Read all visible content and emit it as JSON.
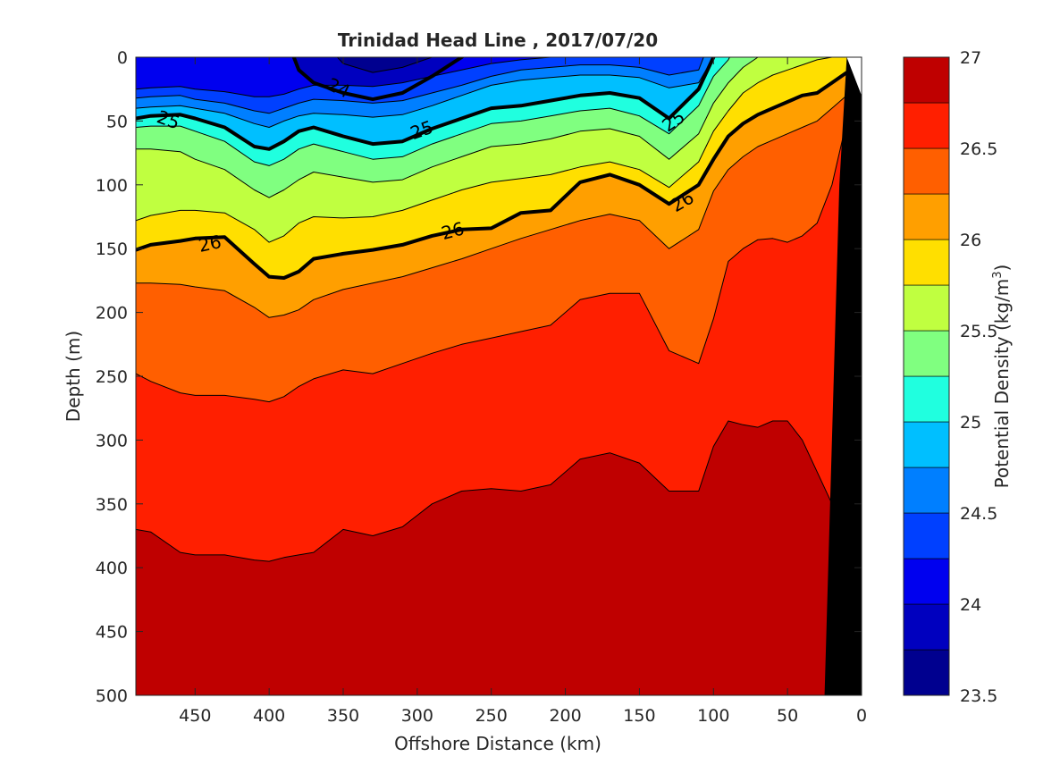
{
  "chart_data": {
    "type": "heatmap",
    "subtype": "filled-contour",
    "title": "Trinidad Head Line , 2017/07/20",
    "xlabel": "Offshore Distance (km)",
    "ylabel": "Depth (m)",
    "colorbar_label": "Potential Density (kg/m",
    "colorbar_label_sup": "3",
    "colorbar_label_end": ")",
    "x_reversed": true,
    "y_reversed": true,
    "xlim": [
      490,
      0
    ],
    "ylim": [
      0,
      500
    ],
    "x_ticks": [
      450,
      400,
      350,
      300,
      250,
      200,
      150,
      100,
      50,
      0
    ],
    "y_ticks": [
      0,
      50,
      100,
      150,
      200,
      250,
      300,
      350,
      400,
      450,
      500
    ],
    "colorbar_range": [
      23.5,
      27
    ],
    "colorbar_ticks": [
      23.5,
      24,
      24.5,
      25,
      25.5,
      26,
      26.5,
      27
    ],
    "contour_interval": 0.25,
    "contour_levels": [
      23.75,
      24,
      24.25,
      24.5,
      24.75,
      25,
      25.25,
      25.5,
      25.75,
      26,
      26.25,
      26.5,
      26.75
    ],
    "bold_contours": [
      24,
      25,
      26
    ],
    "colors": [
      "#00008f",
      "#0000bf",
      "#0000ef",
      "#0040ff",
      "#007fff",
      "#00bfff",
      "#20ffdf",
      "#80ff80",
      "#c0ff40",
      "#ffdf00",
      "#ff9f00",
      "#ff5f00",
      "#ff1f00",
      "#bf0000"
    ],
    "background_top": "#00008f",
    "contour_labels": [
      {
        "text": "24",
        "x": 353,
        "y": 24,
        "angle": 25
      },
      {
        "text": "25",
        "x": 468,
        "y": 49,
        "angle": 20
      },
      {
        "text": "25",
        "x": 297,
        "y": 57,
        "angle": -20
      },
      {
        "text": "25",
        "x": 127,
        "y": 50,
        "angle": -35
      },
      {
        "text": "26",
        "x": 440,
        "y": 146,
        "angle": -12
      },
      {
        "text": "26",
        "x": 276,
        "y": 136,
        "angle": -15
      },
      {
        "text": "26",
        "x": 121,
        "y": 113,
        "angle": -30
      }
    ],
    "isopycnal_depths": {
      "x": [
        490,
        480,
        460,
        450,
        430,
        410,
        400,
        390,
        380,
        370,
        350,
        330,
        310,
        290,
        270,
        250,
        230,
        210,
        190,
        170,
        150,
        130,
        110,
        100,
        90,
        80,
        70,
        60,
        50,
        40,
        30,
        20,
        10
      ],
      "levels": [
        {
          "sigma": 23.75,
          "depth": [
            -20,
            -20,
            -20,
            -20,
            -20,
            -20,
            -20,
            -20,
            -20,
            -20,
            5,
            12,
            8,
            0,
            -20,
            -20,
            -20,
            -20,
            -20,
            -20,
            -20,
            -20,
            -20,
            -20,
            -20,
            -20,
            -20,
            -20,
            -20,
            -20,
            -20,
            -20,
            -20
          ]
        },
        {
          "sigma": 24,
          "depth": [
            -20,
            -20,
            -20,
            -20,
            -20,
            -20,
            -20,
            -20,
            10,
            20,
            28,
            33,
            28,
            15,
            0,
            -20,
            -20,
            -20,
            -20,
            -20,
            -20,
            -20,
            -20,
            -20,
            -20,
            -20,
            -20,
            -20,
            -20,
            -20,
            -20,
            -20,
            -20
          ]
        },
        {
          "sigma": 24.25,
          "depth": [
            25,
            24,
            23,
            25,
            27,
            31,
            31,
            29,
            25,
            22,
            22,
            23,
            20,
            15,
            10,
            5,
            2,
            0,
            0,
            0,
            0,
            0,
            0,
            -20,
            -20,
            -20,
            -20,
            -20,
            -20,
            -20,
            -20,
            -20,
            -20
          ]
        },
        {
          "sigma": 24.5,
          "depth": [
            32,
            31,
            30,
            33,
            36,
            42,
            44,
            40,
            36,
            33,
            34,
            36,
            34,
            28,
            22,
            15,
            10,
            8,
            6,
            6,
            8,
            14,
            10,
            -20,
            -20,
            -20,
            -20,
            -20,
            -20,
            -20,
            -20,
            -20,
            -20
          ]
        },
        {
          "sigma": 24.75,
          "depth": [
            40,
            39,
            38,
            40,
            44,
            52,
            55,
            50,
            46,
            44,
            45,
            47,
            45,
            38,
            30,
            22,
            18,
            16,
            14,
            14,
            16,
            24,
            20,
            0,
            -20,
            -20,
            -20,
            -20,
            -20,
            -20,
            -20,
            -20,
            -20
          ]
        },
        {
          "sigma": 25,
          "depth": [
            48,
            46,
            45,
            48,
            55,
            70,
            72,
            66,
            58,
            55,
            62,
            68,
            66,
            56,
            48,
            40,
            38,
            34,
            30,
            28,
            32,
            48,
            25,
            0,
            -20,
            -20,
            -20,
            -20,
            -20,
            -20,
            -20,
            -20,
            -20
          ]
        },
        {
          "sigma": 25.25,
          "depth": [
            55,
            54,
            54,
            58,
            66,
            82,
            85,
            80,
            72,
            68,
            74,
            80,
            78,
            68,
            60,
            52,
            50,
            46,
            42,
            40,
            46,
            60,
            38,
            15,
            2,
            -20,
            -20,
            -20,
            -20,
            -20,
            -20,
            -20,
            -20
          ]
        },
        {
          "sigma": 25.5,
          "depth": [
            72,
            72,
            74,
            80,
            88,
            104,
            110,
            104,
            96,
            90,
            94,
            98,
            96,
            86,
            78,
            70,
            68,
            64,
            58,
            56,
            62,
            80,
            60,
            36,
            20,
            8,
            0,
            -20,
            -20,
            -20,
            -20,
            -20,
            -20
          ]
        },
        {
          "sigma": 25.75,
          "depth": [
            128,
            124,
            120,
            120,
            122,
            135,
            145,
            140,
            130,
            125,
            126,
            125,
            120,
            112,
            104,
            98,
            95,
            92,
            86,
            82,
            88,
            102,
            82,
            58,
            42,
            28,
            20,
            14,
            10,
            6,
            2,
            0,
            0
          ]
        },
        {
          "sigma": 26,
          "depth": [
            151,
            147,
            144,
            142,
            141,
            162,
            172,
            173,
            168,
            158,
            154,
            151,
            147,
            140,
            135,
            134,
            122,
            120,
            98,
            92,
            100,
            115,
            100,
            80,
            62,
            52,
            45,
            40,
            35,
            30,
            28,
            20,
            12
          ]
        },
        {
          "sigma": 26.25,
          "depth": [
            177,
            177,
            178,
            180,
            183,
            196,
            204,
            202,
            198,
            190,
            182,
            177,
            172,
            165,
            158,
            150,
            142,
            135,
            128,
            123,
            128,
            150,
            135,
            105,
            88,
            78,
            70,
            65,
            60,
            55,
            50,
            40,
            30
          ]
        },
        {
          "sigma": 26.5,
          "depth": [
            248,
            254,
            263,
            265,
            265,
            268,
            270,
            266,
            258,
            252,
            245,
            248,
            240,
            232,
            225,
            220,
            215,
            210,
            190,
            185,
            185,
            230,
            240,
            205,
            160,
            150,
            143,
            142,
            145,
            140,
            130,
            100,
            50
          ]
        },
        {
          "sigma": 26.75,
          "depth": [
            370,
            372,
            388,
            390,
            390,
            394,
            395,
            392,
            390,
            388,
            370,
            375,
            368,
            350,
            340,
            338,
            340,
            335,
            315,
            310,
            318,
            340,
            340,
            305,
            285,
            288,
            290,
            285,
            285,
            300,
            325,
            350,
            350
          ]
        }
      ]
    },
    "bottom_boundary": {
      "x": [
        0,
        10,
        15,
        20,
        25
      ],
      "depth": [
        0,
        0,
        100,
        300,
        500
      ]
    }
  }
}
